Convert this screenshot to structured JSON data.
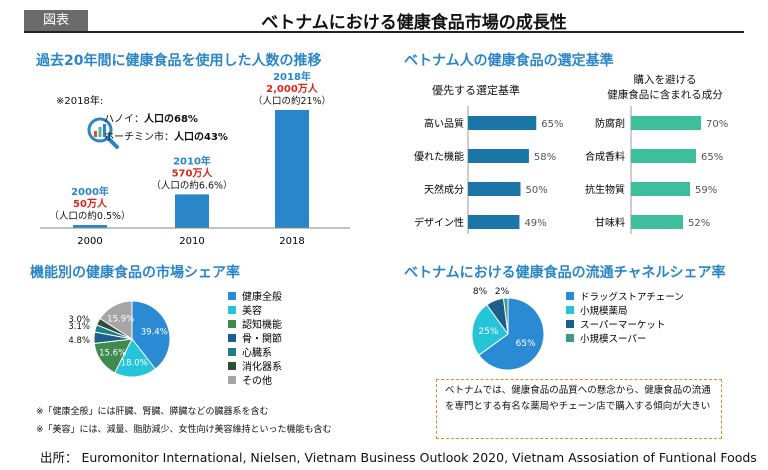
{
  "figure_tag": "図表",
  "title": "ベトナムにおける健康食品市場の成長性",
  "panel_users": {
    "title": "過去20年間に健康食品を使用した人数の推移",
    "note_header": "※2018年:",
    "note_lines": [
      {
        "city": "ハノイ：",
        "value": "人口の68%"
      },
      {
        "city": "ホーチミン市：",
        "value": "人口の43%"
      }
    ],
    "bar_labels": [
      {
        "year_label": "2000年",
        "count_label": "50万人",
        "share_label": "（人口の約0.5%）"
      },
      {
        "year_label": "2010年",
        "count_label": "570万人",
        "share_label": "（人口の約6.6%）"
      },
      {
        "year_label": "2018年",
        "count_label": "2,000万人",
        "share_label": "（人口の約21%）"
      }
    ]
  },
  "panel_criteria": {
    "title": "ベトナム人の健康食品の選定基準",
    "left_subtitle": "優先する選定基準",
    "right_subtitle_line1": "購入を避ける",
    "right_subtitle_line2": "健康食品に含まれる成分"
  },
  "panel_share": {
    "title": "機能別の健康食品の市場シェア率",
    "footnote1": "※「健康全般」には肝臓、腎臓、膵臓などの臓器系を含む",
    "footnote2": "※「美容」には、減量、脂肪減少、女性向け美容維持といった機能も含む"
  },
  "panel_channel": {
    "title": "ベトナムにおける健康食品の流通チャネルシェア率",
    "note": "ベトナムでは、健康食品の品質への懸念から、健康食品の流通を専門とする有名な薬局やチェーン店で購入する傾向が大きい"
  },
  "source": "出所： Euromonitor International, Nielsen, Vietnam Business Outlook 2020, Vietnam Assosiation of Funtional Foods",
  "colors": {
    "blue": "#2a86c8",
    "dark_blue": "#1b75a6",
    "teal": "#3cbf9a",
    "red": "#d9281c"
  },
  "chart_data": [
    {
      "type": "bar",
      "categories": [
        "2000",
        "2010",
        "2018"
      ],
      "values": [
        50,
        570,
        2000
      ],
      "title": "過去20年間に健康食品を使用した人数の推移",
      "unit": "万人",
      "ylim": [
        0,
        2000
      ]
    },
    {
      "type": "bar",
      "orientation": "horizontal",
      "title": "優先する選定基準",
      "categories": [
        "高い品質",
        "優れた機能",
        "天然成分",
        "デザイン性"
      ],
      "values": [
        65,
        58,
        50,
        49
      ],
      "value_labels": [
        "65%",
        "58%",
        "50%",
        "49%"
      ]
    },
    {
      "type": "bar",
      "orientation": "horizontal",
      "title": "購入を避ける健康食品に含まれる成分",
      "categories": [
        "防腐剤",
        "合成香料",
        "抗生物質",
        "甘味料"
      ],
      "values": [
        70,
        65,
        59,
        52
      ],
      "value_labels": [
        "70%",
        "65%",
        "59%",
        "52%"
      ]
    },
    {
      "type": "pie",
      "title": "機能別の健康食品の市場シェア率",
      "labels": [
        "健康全般",
        "美容",
        "認知機能",
        "骨・関節",
        "心臓系",
        "消化器系",
        "その他"
      ],
      "values": [
        39.4,
        18.0,
        15.6,
        4.8,
        3.1,
        3.0,
        15.9
      ],
      "value_labels": [
        "39.4%",
        "18.0%",
        "15.6%",
        "4.8%",
        "3.1%",
        "3.0%",
        "15.9%"
      ],
      "colors": [
        "#2a8ad4",
        "#25c4d8",
        "#3f8a4e",
        "#1d5f8a",
        "#1d7f86",
        "#2d4f35",
        "#a6a6a6"
      ],
      "legend": "right"
    },
    {
      "type": "pie",
      "title": "ベトナムにおける健康食品の流通チャネルシェア率",
      "labels": [
        "ドラッグストアチェーン",
        "小規模薬局",
        "スーパーマーケット",
        "小規模スーパー"
      ],
      "values": [
        65,
        25,
        8,
        2
      ],
      "value_labels": [
        "65%",
        "25%",
        "8%",
        "2%"
      ],
      "colors": [
        "#2a8ad4",
        "#25c4d8",
        "#1d5f8a",
        "#3a9a8c"
      ],
      "legend": "right"
    }
  ]
}
